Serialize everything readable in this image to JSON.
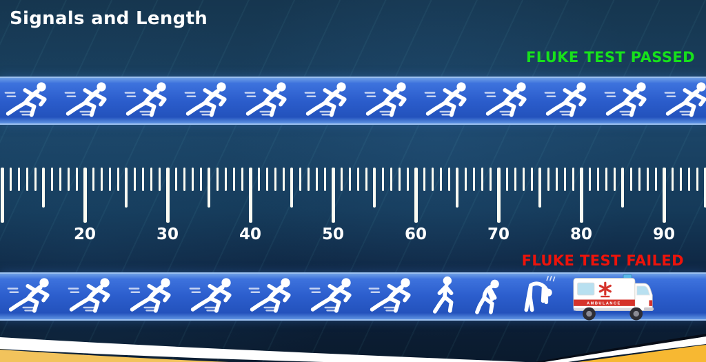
{
  "slide": {
    "title": "Signals and Length"
  },
  "status": {
    "passed": {
      "label": "FLUKE TEST PASSED",
      "color": "#17e11b"
    },
    "failed": {
      "label": "FLUKE TEST FAILED",
      "color": "#ef130a"
    }
  },
  "top_band": {
    "meaning": "fluke-test-passed-track",
    "figures": [
      "sprinter",
      "sprinter",
      "sprinter",
      "sprinter",
      "sprinter",
      "sprinter",
      "sprinter",
      "sprinter",
      "sprinter",
      "sprinter",
      "sprinter",
      "sprinter"
    ]
  },
  "bottom_band": {
    "meaning": "fluke-test-failed-track",
    "figures": [
      "sprinter",
      "sprinter",
      "sprinter",
      "sprinter",
      "sprinter",
      "sprinter",
      "sprinter",
      "jogger",
      "tired-runner",
      "bent-runner",
      "ambulance"
    ]
  },
  "ambulance": {
    "label": "AMBULANCE"
  },
  "ruler": {
    "unit_min": 10,
    "unit_max": 95,
    "minor_step": 1,
    "medium_step": 5,
    "major_step": 10,
    "labels": [
      {
        "value": 20,
        "text": "20"
      },
      {
        "value": 30,
        "text": "30"
      },
      {
        "value": 40,
        "text": "40"
      },
      {
        "value": 50,
        "text": "50"
      },
      {
        "value": 60,
        "text": "60"
      },
      {
        "value": 70,
        "text": "70"
      },
      {
        "value": 80,
        "text": "80"
      },
      {
        "value": 90,
        "text": "90"
      }
    ]
  },
  "colors": {
    "background": "#16364f",
    "band_blue": "#2c5ecd",
    "band_border": "#9cc1f0",
    "tick_white": "#fbfbf2",
    "passed_green": "#17e11b",
    "failed_red": "#ef130a",
    "swoosh_yellow_left": "#f2c35c",
    "swoosh_yellow_right": "#f7b832",
    "swoosh_white": "#ffffff",
    "ambulance_red": "#d5332b"
  }
}
